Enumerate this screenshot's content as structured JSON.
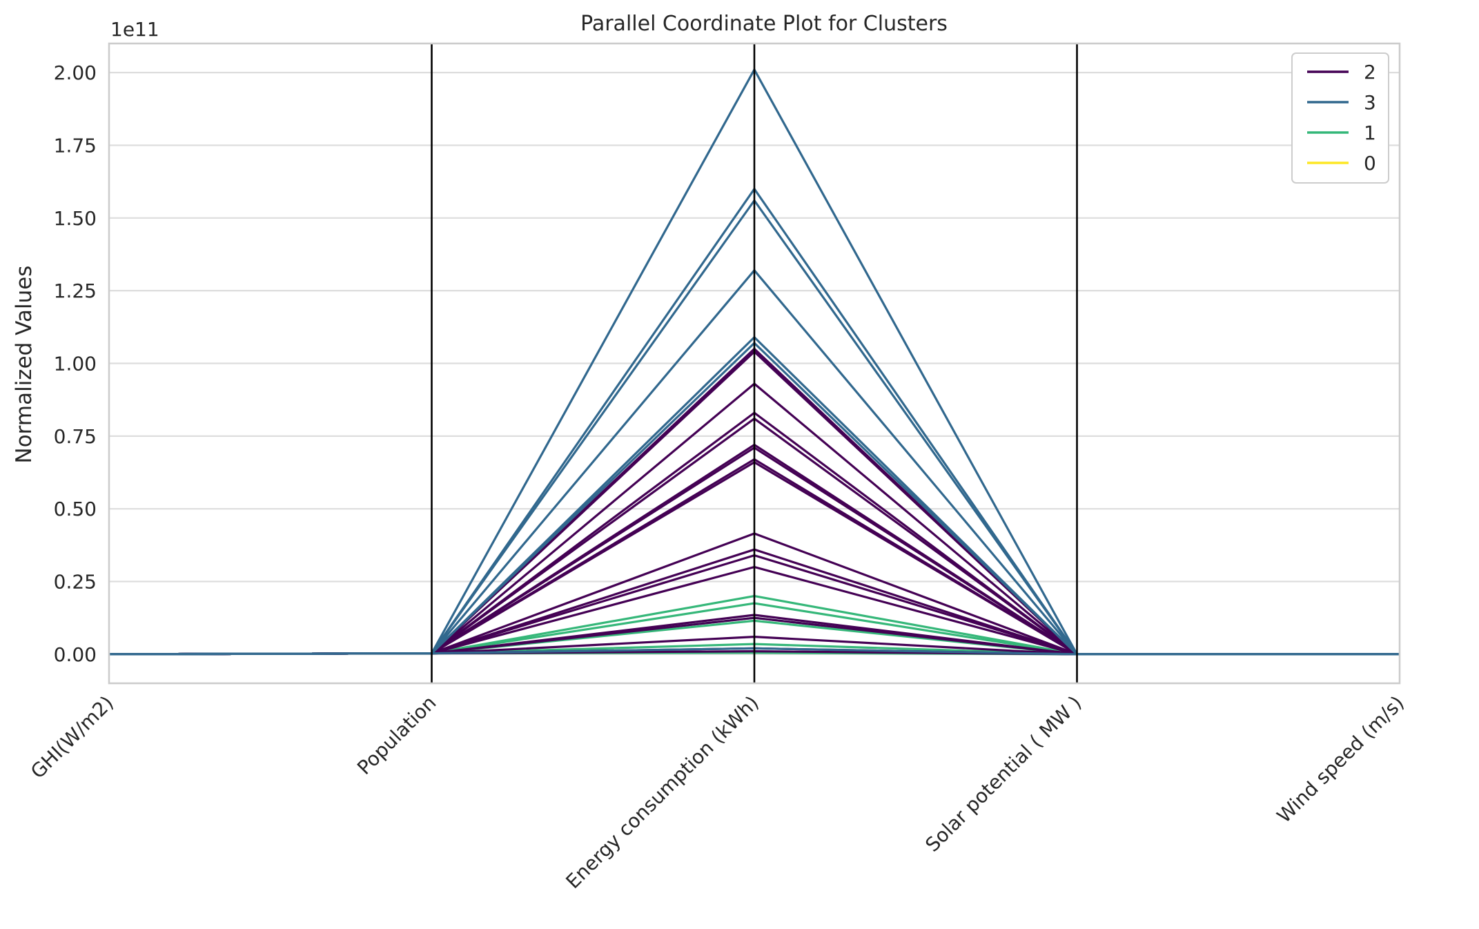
{
  "chart_data": {
    "type": "line",
    "title": "Parallel Coordinate Plot for Clusters",
    "ylabel": "Normalized Values",
    "xlabel": "",
    "y_offset_text": "1e11",
    "categories": [
      "GHI(W/m2)",
      "Population",
      "Energy consumption (kWh)",
      "Solar potential ( MW )",
      "Wind speed (m/s)"
    ],
    "ylim": [
      -0.1,
      2.1
    ],
    "yticks": [
      0.0,
      0.25,
      0.5,
      0.75,
      1.0,
      1.25,
      1.5,
      1.75,
      2.0
    ],
    "ytick_labels": [
      "0.00",
      "0.25",
      "0.50",
      "0.75",
      "1.00",
      "1.25",
      "1.50",
      "1.75",
      "2.00"
    ],
    "grid": "horizontal",
    "legend_position": "top-right",
    "series": [
      {
        "name": "2",
        "color": "#440154",
        "lines": [
          [
            0,
            0.003,
            1.05,
            0,
            0
          ],
          [
            0,
            0.003,
            1.04,
            0,
            0
          ],
          [
            0,
            0.003,
            0.93,
            0,
            0
          ],
          [
            0,
            0.003,
            0.83,
            0,
            0
          ],
          [
            0,
            0.003,
            0.81,
            0,
            0
          ],
          [
            0,
            0.003,
            0.72,
            0,
            0
          ],
          [
            0,
            0.003,
            0.71,
            0,
            0
          ],
          [
            0,
            0.003,
            0.67,
            0,
            0
          ],
          [
            0,
            0.003,
            0.66,
            0,
            0
          ],
          [
            0,
            0.003,
            0.415,
            0,
            0
          ],
          [
            0,
            0.003,
            0.36,
            0,
            0
          ],
          [
            0,
            0.003,
            0.34,
            0,
            0
          ],
          [
            0,
            0.003,
            0.3,
            0,
            0
          ],
          [
            0,
            0.003,
            0.135,
            0,
            0
          ],
          [
            0,
            0.003,
            0.125,
            0,
            0
          ],
          [
            0,
            0.003,
            0.06,
            0,
            0
          ],
          [
            0,
            0.003,
            0.02,
            0,
            0
          ],
          [
            0,
            0.003,
            0.01,
            0,
            0
          ]
        ]
      },
      {
        "name": "3",
        "color": "#31688e",
        "lines": [
          [
            0,
            0.003,
            2.01,
            0,
            0
          ],
          [
            0,
            0.003,
            1.6,
            0,
            0
          ],
          [
            0,
            0.003,
            1.56,
            0,
            0
          ],
          [
            0,
            0.003,
            1.32,
            0,
            0
          ],
          [
            0,
            0.003,
            1.09,
            0,
            0
          ],
          [
            0,
            0.003,
            1.07,
            0,
            0
          ],
          [
            0,
            0.003,
            0.02,
            0,
            0
          ]
        ]
      },
      {
        "name": "1",
        "color": "#35b779",
        "lines": [
          [
            0,
            0.003,
            0.2,
            0,
            0
          ],
          [
            0,
            0.003,
            0.175,
            0,
            0
          ],
          [
            0,
            0.003,
            0.125,
            0,
            0
          ],
          [
            0,
            0.003,
            0.115,
            0,
            0
          ],
          [
            0,
            0.003,
            0.035,
            0,
            0
          ],
          [
            0,
            0.003,
            0.005,
            0,
            0
          ]
        ]
      },
      {
        "name": "0",
        "color": "#fde725",
        "lines": []
      }
    ]
  }
}
